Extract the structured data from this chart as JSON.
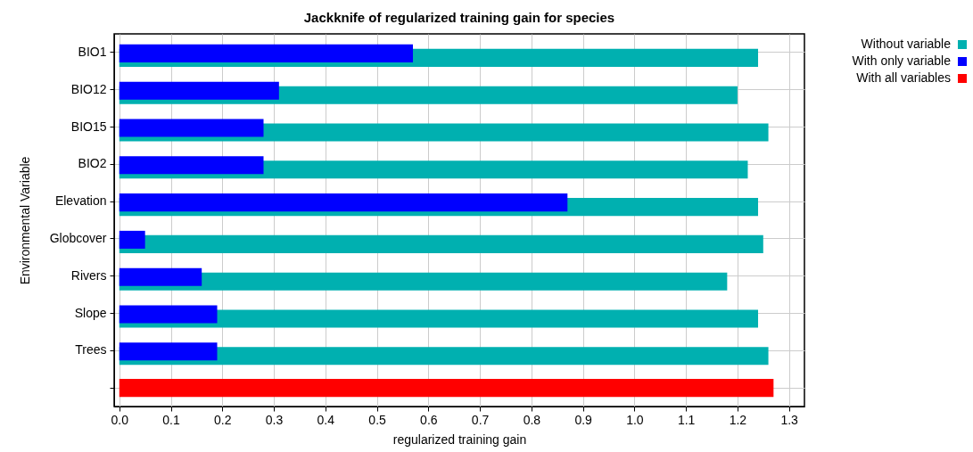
{
  "chart_data": {
    "type": "bar",
    "orientation": "horizontal",
    "title": "Jackknife of regularized training gain for species",
    "xlabel": "regularized training gain",
    "ylabel": "Environmental Variable",
    "categories": [
      "BIO1",
      "BIO12",
      "BIO15",
      "BIO2",
      "Elevation",
      "Globcover",
      "Rivers",
      "Slope",
      "Trees",
      null
    ],
    "series": [
      {
        "name": "Without variable",
        "color": "#00b0b0",
        "values": [
          1.24,
          1.2,
          1.26,
          1.22,
          1.24,
          1.25,
          1.18,
          1.24,
          1.26,
          null
        ]
      },
      {
        "name": "With only variable",
        "color": "#0000ff",
        "values": [
          0.57,
          0.31,
          0.28,
          0.28,
          0.87,
          0.05,
          0.16,
          0.19,
          0.19,
          null
        ]
      },
      {
        "name": "With all variables",
        "color": "#ff0000",
        "values": [
          null,
          null,
          null,
          null,
          null,
          null,
          null,
          null,
          null,
          1.27
        ]
      }
    ],
    "xlim": [
      -0.01,
      1.33
    ],
    "xticks": [
      {
        "value": 0,
        "label": "0.0"
      },
      0.1,
      0.2,
      0.3,
      0.4,
      0.5,
      0.6,
      0.7,
      0.8,
      0.9,
      {
        "value": 1,
        "label": "1.0"
      },
      1.1,
      1.2,
      1.3
    ],
    "grid": true,
    "legend": "top right"
  }
}
